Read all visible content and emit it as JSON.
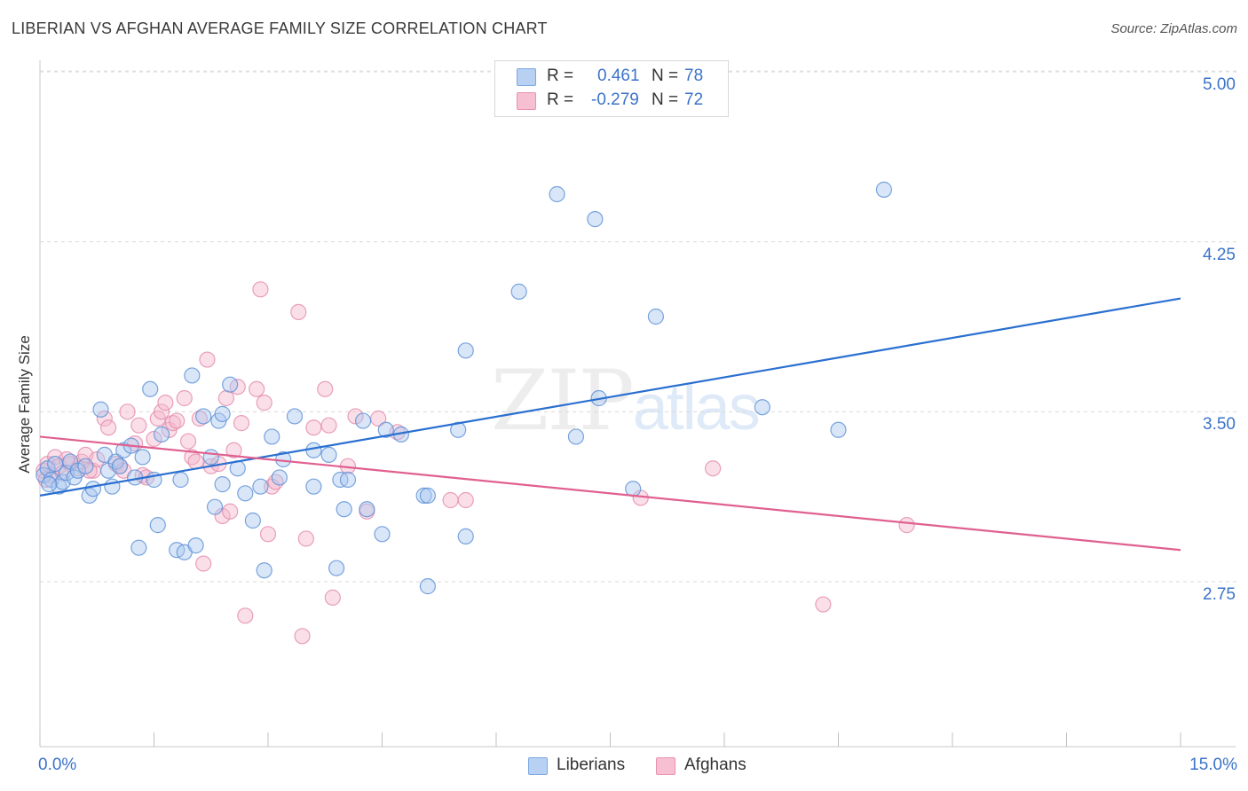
{
  "header": {
    "title": "LIBERIAN VS AFGHAN AVERAGE FAMILY SIZE CORRELATION CHART",
    "source_label": "Source: ZipAtlas.com"
  },
  "watermark": {
    "zip": "ZIP",
    "atlas": "atlas"
  },
  "legend": {
    "rows": [
      {
        "r_label": "R =",
        "r_value": "0.461",
        "n_label": "N =",
        "n_value": "78",
        "color": "#b8d1f3"
      },
      {
        "r_label": "R =",
        "r_value": "-0.279",
        "n_label": "N =",
        "n_value": "72",
        "color": "#f7c0d2"
      }
    ]
  },
  "bottom_legend": {
    "series1": "Liberians",
    "series2": "Afghans"
  },
  "axes": {
    "ylabel": "Average Family Size",
    "y_ticks": [
      "5.00",
      "4.25",
      "3.50",
      "2.75"
    ],
    "x_min_label": "0.0%",
    "x_max_label": "15.0%"
  },
  "colors": {
    "liberians_fill": "#a9c8ef",
    "liberians_stroke": "#5a8fd6",
    "liberians_line": "#2a6fd0",
    "afghans_fill": "#f5b8cc",
    "afghans_stroke": "#e48aab",
    "afghans_line": "#e0608f",
    "tick_text": "#3b73c9"
  },
  "chart_data": {
    "type": "scatter",
    "title": "LIBERIAN VS AFGHAN AVERAGE FAMILY SIZE CORRELATION CHART",
    "xlabel": "",
    "ylabel": "Average Family Size",
    "xlim": [
      0,
      15
    ],
    "ylim": [
      2.05,
      5.1
    ],
    "y_ticks": [
      2.75,
      3.5,
      4.25,
      5.0
    ],
    "grid": true,
    "legend_position": "top-center",
    "series": [
      {
        "name": "Liberians",
        "r": 0.461,
        "n": 78,
        "trend": {
          "x": [
            0,
            15
          ],
          "y": [
            3.13,
            4.0
          ]
        },
        "points": [
          [
            0.05,
            3.22
          ],
          [
            0.1,
            3.25
          ],
          [
            0.15,
            3.2
          ],
          [
            0.2,
            3.27
          ],
          [
            0.25,
            3.17
          ],
          [
            0.3,
            3.19
          ],
          [
            0.35,
            3.23
          ],
          [
            0.4,
            3.28
          ],
          [
            0.45,
            3.21
          ],
          [
            0.5,
            3.24
          ],
          [
            0.6,
            3.26
          ],
          [
            0.65,
            3.13
          ],
          [
            0.7,
            3.16
          ],
          [
            0.8,
            3.51
          ],
          [
            0.85,
            3.31
          ],
          [
            0.9,
            3.24
          ],
          [
            0.95,
            3.17
          ],
          [
            1.0,
            3.28
          ],
          [
            1.05,
            3.26
          ],
          [
            1.1,
            3.33
          ],
          [
            1.2,
            3.35
          ],
          [
            1.25,
            3.21
          ],
          [
            1.3,
            2.9
          ],
          [
            1.35,
            3.3
          ],
          [
            1.45,
            3.6
          ],
          [
            1.5,
            3.2
          ],
          [
            1.55,
            3.0
          ],
          [
            1.6,
            3.4
          ],
          [
            1.8,
            2.89
          ],
          [
            1.85,
            3.2
          ],
          [
            1.9,
            2.88
          ],
          [
            2.0,
            3.66
          ],
          [
            2.05,
            2.91
          ],
          [
            2.15,
            3.48
          ],
          [
            2.25,
            3.3
          ],
          [
            2.3,
            3.08
          ],
          [
            2.35,
            3.46
          ],
          [
            2.4,
            3.18
          ],
          [
            2.4,
            3.49
          ],
          [
            2.5,
            3.62
          ],
          [
            2.6,
            3.25
          ],
          [
            2.7,
            3.14
          ],
          [
            2.8,
            3.02
          ],
          [
            2.9,
            3.17
          ],
          [
            2.95,
            2.8
          ],
          [
            3.05,
            3.39
          ],
          [
            3.15,
            3.21
          ],
          [
            3.2,
            3.29
          ],
          [
            3.35,
            3.48
          ],
          [
            3.6,
            3.17
          ],
          [
            3.6,
            3.33
          ],
          [
            3.8,
            3.31
          ],
          [
            3.9,
            2.81
          ],
          [
            3.95,
            3.2
          ],
          [
            4.0,
            3.07
          ],
          [
            4.05,
            3.2
          ],
          [
            4.25,
            3.46
          ],
          [
            4.3,
            3.07
          ],
          [
            4.5,
            2.96
          ],
          [
            4.55,
            3.42
          ],
          [
            4.75,
            3.4
          ],
          [
            5.1,
            2.73
          ],
          [
            5.05,
            3.13
          ],
          [
            5.1,
            3.13
          ],
          [
            5.5,
            3.42
          ],
          [
            5.6,
            2.95
          ],
          [
            5.6,
            3.77
          ],
          [
            6.3,
            4.03
          ],
          [
            6.8,
            4.46
          ],
          [
            7.3,
            4.35
          ],
          [
            7.05,
            3.39
          ],
          [
            7.35,
            3.56
          ],
          [
            7.8,
            3.16
          ],
          [
            8.1,
            3.92
          ],
          [
            9.5,
            3.52
          ],
          [
            10.5,
            3.42
          ],
          [
            11.1,
            4.48
          ],
          [
            0.12,
            3.18
          ]
        ]
      },
      {
        "name": "Afghans",
        "r": -0.279,
        "n": 72,
        "trend": {
          "x": [
            0,
            15
          ],
          "y": [
            3.39,
            2.89
          ]
        },
        "points": [
          [
            0.05,
            3.24
          ],
          [
            0.1,
            3.27
          ],
          [
            0.15,
            3.22
          ],
          [
            0.2,
            3.3
          ],
          [
            0.25,
            3.26
          ],
          [
            0.3,
            3.23
          ],
          [
            0.4,
            3.27
          ],
          [
            0.5,
            3.25
          ],
          [
            0.55,
            3.28
          ],
          [
            0.6,
            3.31
          ],
          [
            0.7,
            3.24
          ],
          [
            0.75,
            3.29
          ],
          [
            0.85,
            3.47
          ],
          [
            0.9,
            3.43
          ],
          [
            1.0,
            3.27
          ],
          [
            1.05,
            3.26
          ],
          [
            1.15,
            3.5
          ],
          [
            1.25,
            3.36
          ],
          [
            1.3,
            3.44
          ],
          [
            1.35,
            3.22
          ],
          [
            1.4,
            3.21
          ],
          [
            1.5,
            3.38
          ],
          [
            1.55,
            3.47
          ],
          [
            1.6,
            3.5
          ],
          [
            1.65,
            3.54
          ],
          [
            1.7,
            3.42
          ],
          [
            1.75,
            3.45
          ],
          [
            1.8,
            3.46
          ],
          [
            1.9,
            3.56
          ],
          [
            1.95,
            3.37
          ],
          [
            2.0,
            3.3
          ],
          [
            2.1,
            3.47
          ],
          [
            2.15,
            2.83
          ],
          [
            2.2,
            3.73
          ],
          [
            2.25,
            3.26
          ],
          [
            2.35,
            3.27
          ],
          [
            2.4,
            3.04
          ],
          [
            2.45,
            3.56
          ],
          [
            2.5,
            3.06
          ],
          [
            2.55,
            3.33
          ],
          [
            2.6,
            3.61
          ],
          [
            2.65,
            3.45
          ],
          [
            2.7,
            2.6
          ],
          [
            2.85,
            3.6
          ],
          [
            2.9,
            4.04
          ],
          [
            2.95,
            3.54
          ],
          [
            3.0,
            2.96
          ],
          [
            3.05,
            3.17
          ],
          [
            3.1,
            3.19
          ],
          [
            3.4,
            3.94
          ],
          [
            3.45,
            2.51
          ],
          [
            3.5,
            2.94
          ],
          [
            3.6,
            3.43
          ],
          [
            3.75,
            3.6
          ],
          [
            3.8,
            3.44
          ],
          [
            3.85,
            2.68
          ],
          [
            4.05,
            3.26
          ],
          [
            4.15,
            3.48
          ],
          [
            4.3,
            3.06
          ],
          [
            4.45,
            3.47
          ],
          [
            4.7,
            3.41
          ],
          [
            5.4,
            3.11
          ],
          [
            5.6,
            3.11
          ],
          [
            7.9,
            3.12
          ],
          [
            8.85,
            3.25
          ],
          [
            10.3,
            2.65
          ],
          [
            11.4,
            3.0
          ],
          [
            0.08,
            3.2
          ],
          [
            0.35,
            3.29
          ],
          [
            0.65,
            3.24
          ],
          [
            1.1,
            3.24
          ],
          [
            2.05,
            3.28
          ]
        ]
      }
    ]
  }
}
